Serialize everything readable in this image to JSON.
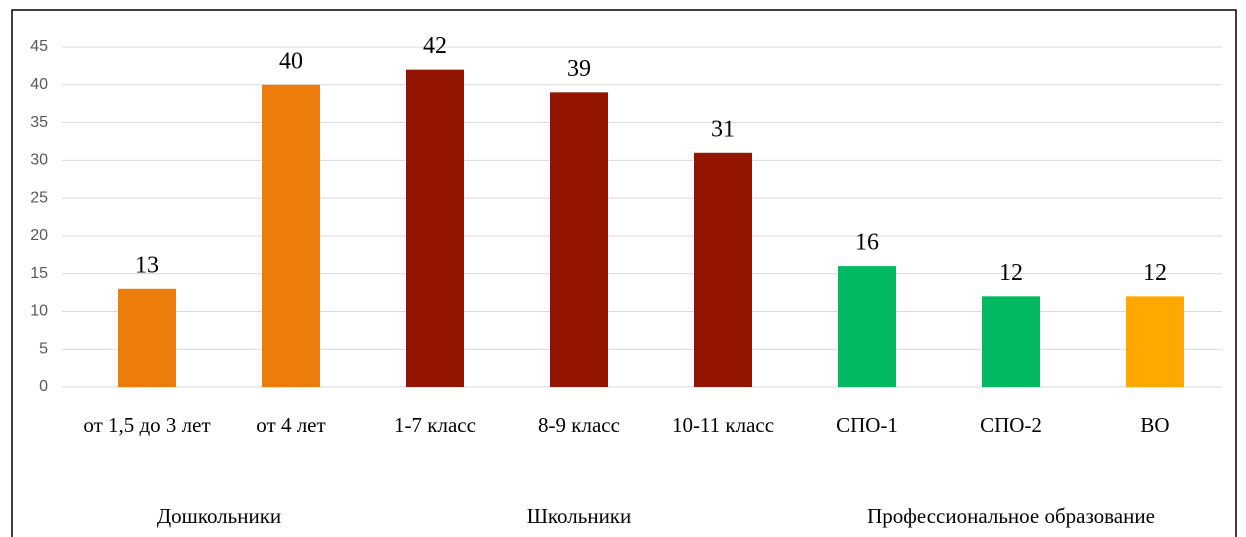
{
  "chart_data": {
    "type": "bar",
    "groups": [
      {
        "name": "Дошкольники",
        "categories": [
          "от 1,5 до 3 лет",
          "от 4 лет"
        ],
        "values": [
          13,
          40
        ],
        "colors": [
          "#ed7d0a",
          "#ed7d0a"
        ]
      },
      {
        "name": "Школьники",
        "categories": [
          "1-7 класс",
          "8-9 класс",
          "10-11 класс"
        ],
        "values": [
          42,
          39,
          31
        ],
        "colors": [
          "#931500",
          "#931500",
          "#931500"
        ]
      },
      {
        "name": "Профессиональное образование",
        "categories": [
          "СПО-1",
          "СПО-2",
          "ВО"
        ],
        "values": [
          16,
          12,
          12
        ],
        "colors": [
          "#00b960",
          "#00b960",
          "#ffa800"
        ]
      }
    ],
    "ylim": [
      0,
      45
    ],
    "yticks": [
      0,
      5,
      10,
      15,
      20,
      25,
      30,
      35,
      40,
      45
    ],
    "grid": true
  }
}
